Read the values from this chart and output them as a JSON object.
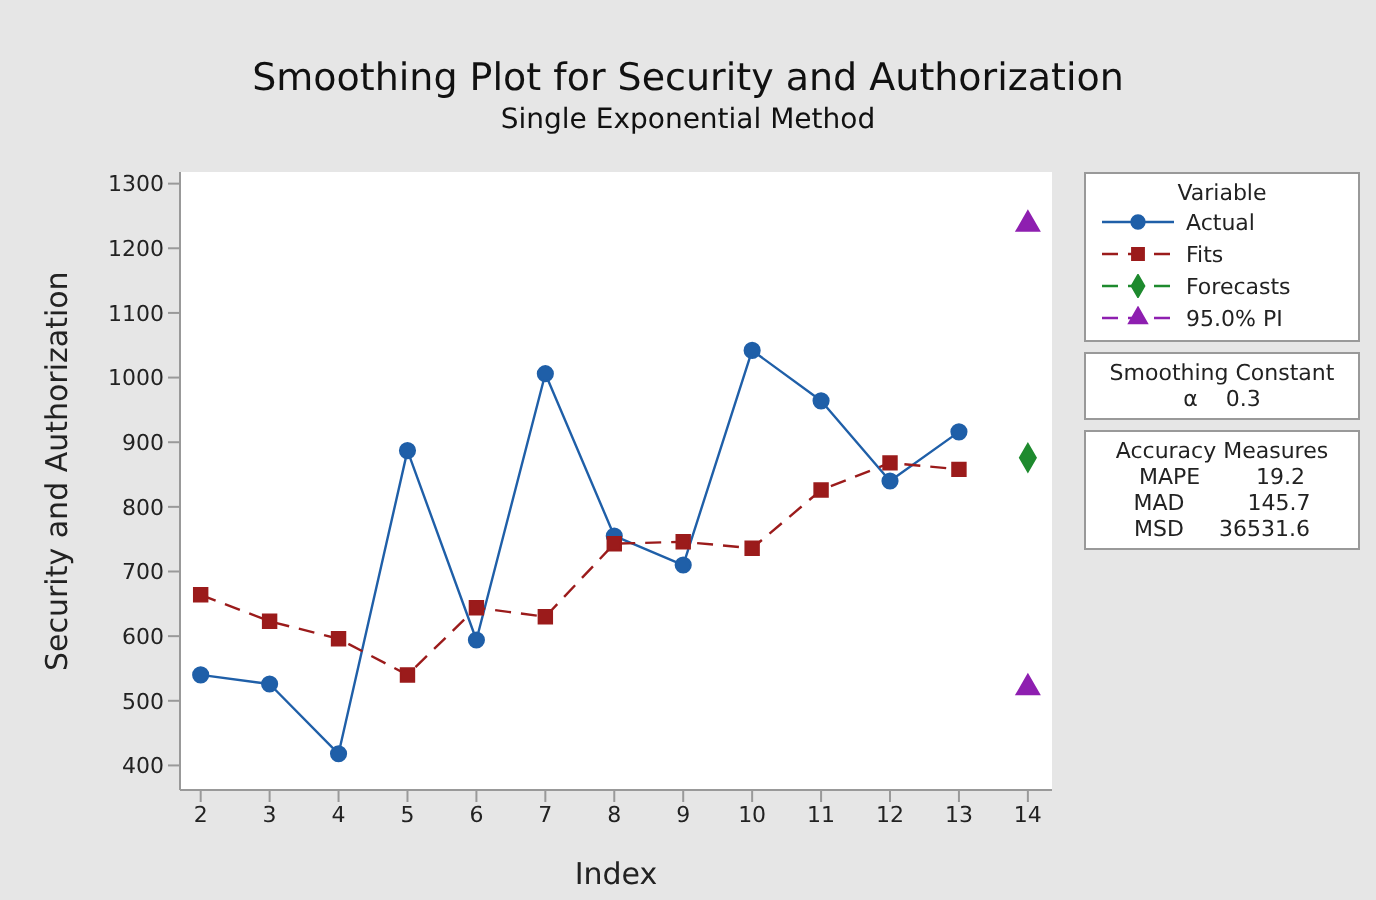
{
  "chart_data": {
    "type": "line",
    "title": "Smoothing Plot for Security and Authorization",
    "subtitle": "Single Exponential Method",
    "xlabel": "Index",
    "ylabel": "Security and Authorization",
    "legend_title": "Variable",
    "x": [
      2,
      3,
      4,
      5,
      6,
      7,
      8,
      9,
      10,
      11,
      12,
      13,
      14
    ],
    "series": [
      {
        "name": "Actual",
        "color": "#1f5fa8",
        "marker": "circle",
        "line_style": "solid",
        "values": [
          540,
          526,
          418,
          887,
          594,
          1006,
          755,
          710,
          1042,
          964,
          840,
          916,
          null
        ]
      },
      {
        "name": "Fits",
        "color": "#9b1b1b",
        "marker": "square",
        "line_style": "dashed",
        "values": [
          664,
          623,
          596,
          540,
          644,
          630,
          743,
          746,
          736,
          826,
          868,
          858,
          null
        ]
      },
      {
        "name": "Forecasts",
        "type": "scatter",
        "color": "#1e8a2e",
        "marker": "diamond",
        "line_style": "dashed",
        "values": [
          null,
          null,
          null,
          null,
          null,
          null,
          null,
          null,
          null,
          null,
          null,
          null,
          876
        ]
      },
      {
        "name": "95.0% PI",
        "type": "scatter",
        "color": "#8e1fb0",
        "marker": "triangle",
        "line_style": "dashed",
        "x": [
          14,
          14
        ],
        "values": [
          1237,
          520
        ]
      }
    ],
    "xlim": [
      1.7,
      14.35
    ],
    "xticks": [
      2,
      3,
      4,
      5,
      6,
      7,
      8,
      9,
      10,
      11,
      12,
      13,
      14
    ],
    "ylim": [
      362,
      1318
    ],
    "yticks": [
      400,
      500,
      600,
      700,
      800,
      900,
      1000,
      1100,
      1200,
      1300
    ],
    "grid": false,
    "legend": "right",
    "annotations": [
      "Smoothing Constant",
      "α    0.3",
      "Accuracy Measures",
      "MAPE        19.2",
      "MAD         145.7",
      "MSD     36531.6"
    ]
  }
}
